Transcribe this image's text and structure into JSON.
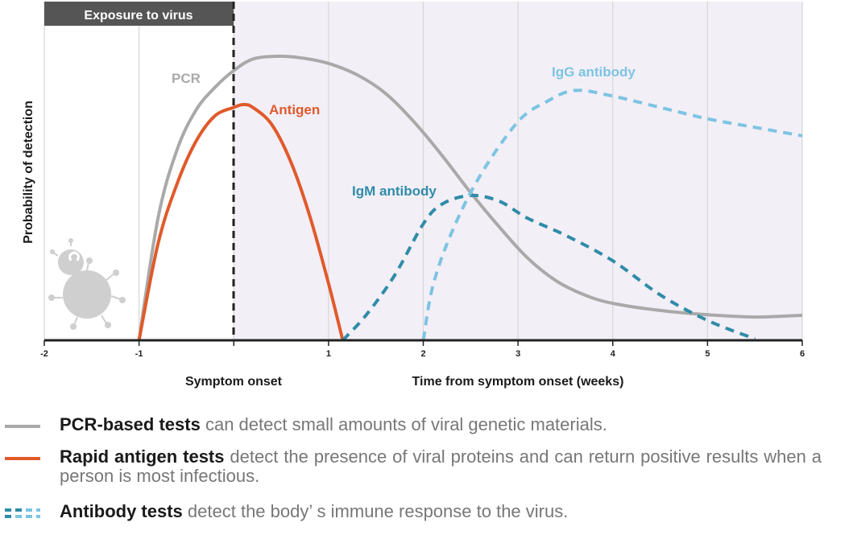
{
  "chart_data": {
    "type": "line",
    "title": "",
    "xlabel": "Time from symptom onset (weeks)",
    "ylabel": "Probability of detection",
    "xlim": [
      -2,
      6
    ],
    "ylim": [
      0,
      1
    ],
    "x_ticks": [
      "-2",
      "-1",
      "0",
      "1",
      "2",
      "3",
      "4",
      "5",
      "6"
    ],
    "grid": true,
    "annotations": {
      "exposure_band": "Exposure to virus",
      "symptom_onset": "Symptom onset"
    },
    "series": [
      {
        "name": "PCR",
        "style": "solid",
        "color": "#a9a9a9",
        "points": [
          [
            -1.0,
            0.0
          ],
          [
            -0.8,
            0.43
          ],
          [
            -0.6,
            0.67
          ],
          [
            -0.4,
            0.81
          ],
          [
            -0.2,
            0.89
          ],
          [
            0.0,
            0.95
          ],
          [
            0.2,
            0.99
          ],
          [
            0.45,
            1.0
          ],
          [
            0.7,
            0.995
          ],
          [
            1.0,
            0.975
          ],
          [
            1.3,
            0.935
          ],
          [
            1.6,
            0.87
          ],
          [
            1.9,
            0.77
          ],
          [
            2.2,
            0.65
          ],
          [
            2.5,
            0.52
          ],
          [
            2.8,
            0.4
          ],
          [
            3.1,
            0.29
          ],
          [
            3.4,
            0.21
          ],
          [
            3.7,
            0.16
          ],
          [
            4.0,
            0.13
          ],
          [
            4.5,
            0.105
          ],
          [
            5.0,
            0.09
          ],
          [
            5.5,
            0.082
          ],
          [
            6.0,
            0.088
          ]
        ]
      },
      {
        "name": "Antigen",
        "style": "solid",
        "color": "#e05a2b",
        "points": [
          [
            -1.0,
            0.0
          ],
          [
            -0.8,
            0.34
          ],
          [
            -0.6,
            0.55
          ],
          [
            -0.4,
            0.7
          ],
          [
            -0.2,
            0.79
          ],
          [
            0.0,
            0.82
          ],
          [
            0.1,
            0.83
          ],
          [
            0.2,
            0.82
          ],
          [
            0.4,
            0.76
          ],
          [
            0.6,
            0.63
          ],
          [
            0.8,
            0.44
          ],
          [
            1.0,
            0.2
          ],
          [
            1.15,
            0.0
          ]
        ]
      },
      {
        "name": "IgM antibody",
        "style": "dashed",
        "color": "#2f8ca8",
        "points": [
          [
            1.15,
            0.0
          ],
          [
            1.4,
            0.09
          ],
          [
            1.7,
            0.23
          ],
          [
            2.0,
            0.41
          ],
          [
            2.2,
            0.48
          ],
          [
            2.5,
            0.51
          ],
          [
            2.8,
            0.49
          ],
          [
            3.1,
            0.43
          ],
          [
            3.5,
            0.37
          ],
          [
            4.0,
            0.28
          ],
          [
            4.5,
            0.16
          ],
          [
            5.0,
            0.07
          ],
          [
            5.5,
            0.005
          ]
        ]
      },
      {
        "name": "IgG antibody",
        "style": "dashed",
        "color": "#7cc4e2",
        "points": [
          [
            2.0,
            0.0
          ],
          [
            2.1,
            0.19
          ],
          [
            2.3,
            0.38
          ],
          [
            2.6,
            0.58
          ],
          [
            3.0,
            0.77
          ],
          [
            3.3,
            0.84
          ],
          [
            3.6,
            0.88
          ],
          [
            4.0,
            0.86
          ],
          [
            4.5,
            0.82
          ],
          [
            5.0,
            0.78
          ],
          [
            5.5,
            0.75
          ],
          [
            6.0,
            0.72
          ]
        ]
      }
    ],
    "series_labels": {
      "pcr": "PCR",
      "antigen": "Antigen",
      "igm": "IgM antibody",
      "igg": "IgG antibody"
    }
  },
  "legend": {
    "pcr": {
      "bold": "PCR-based tests",
      "text": " can detect small amounts of viral genetic materials."
    },
    "antigen": {
      "bold": "Rapid antigen tests",
      "text": " detect the presence of viral proteins and can return positive results when a person is most infectious."
    },
    "antibody": {
      "bold": "Antibody tests",
      "text": " detect the body’ s immune response to the virus."
    }
  },
  "icons": [
    "virus-icon"
  ]
}
